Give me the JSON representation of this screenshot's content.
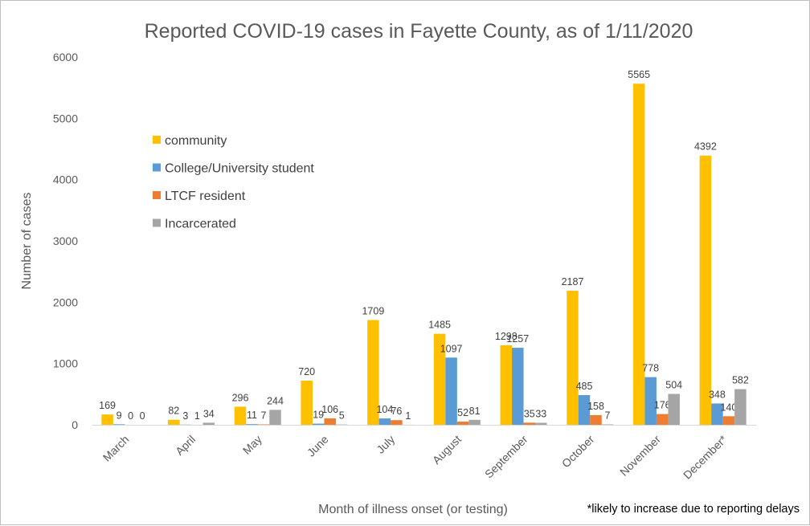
{
  "chart_data": {
    "type": "bar",
    "title": "Reported COVID-19 cases in Fayette County, as of 1/11/2020",
    "xlabel": "Month of illness onset (or testing)",
    "ylabel": "Number of cases",
    "ylim": [
      0,
      6000
    ],
    "yticks": [
      0,
      1000,
      2000,
      3000,
      4000,
      5000,
      6000
    ],
    "grid": false,
    "legend_position": "left",
    "categories": [
      "March",
      "April",
      "May",
      "June",
      "July",
      "August",
      "September",
      "October",
      "November",
      "December*"
    ],
    "series": [
      {
        "name": "community",
        "color": "#FFC000",
        "values": [
          169,
          82,
          296,
          720,
          1709,
          1485,
          1298,
          2187,
          5565,
          4392
        ]
      },
      {
        "name": "College/University student",
        "color": "#5B9BD5",
        "values": [
          9,
          3,
          11,
          19,
          104,
          1097,
          1257,
          485,
          778,
          348
        ]
      },
      {
        "name": "LTCF resident",
        "color": "#ED7D31",
        "values": [
          0,
          1,
          7,
          106,
          76,
          52,
          35,
          158,
          176,
          140
        ]
      },
      {
        "name": "Incarcerated",
        "color": "#A5A5A5",
        "values": [
          0,
          34,
          244,
          5,
          1,
          81,
          33,
          7,
          504,
          582
        ]
      }
    ],
    "footnote": "*likely  to increase due to reporting delays"
  }
}
